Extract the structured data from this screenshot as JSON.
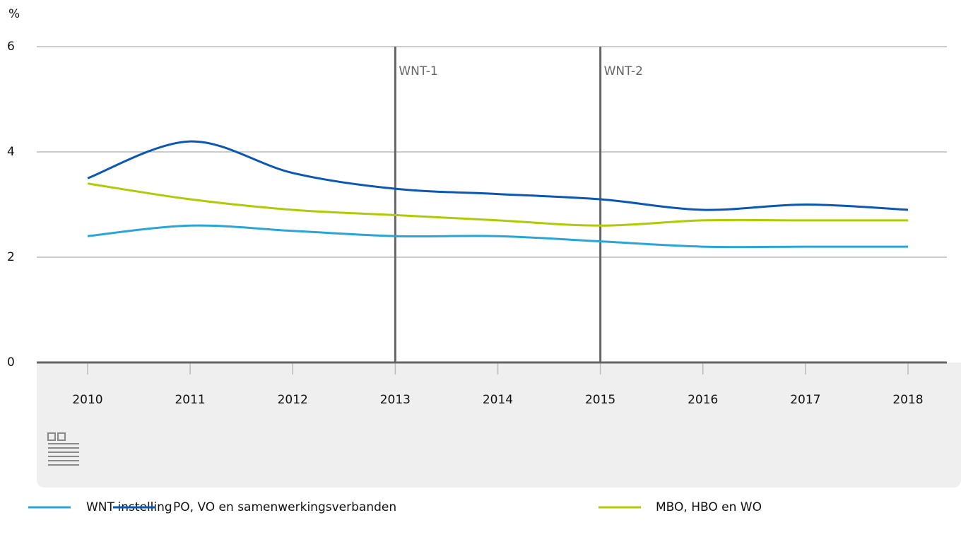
{
  "chart_data": {
    "type": "line",
    "y_label": "%",
    "categories": [
      "2010",
      "2011",
      "2012",
      "2013",
      "2014",
      "2015",
      "2016",
      "2017",
      "2018"
    ],
    "series": [
      {
        "name": "WNT-instelling",
        "color": "#2aa5d8",
        "values": [
          2.4,
          2.6,
          2.5,
          2.4,
          2.4,
          2.3,
          2.2,
          2.2,
          2.2
        ]
      },
      {
        "name": "PO, VO en samenwerkingsverbanden",
        "color": "#0a58b3",
        "values": [
          3.5,
          4.2,
          3.6,
          3.3,
          3.2,
          3.1,
          2.9,
          3.0,
          2.9
        ]
      },
      {
        "name": "MBO, HBO en WO",
        "color": "#afcb05",
        "values": [
          3.4,
          3.1,
          2.9,
          2.8,
          2.7,
          2.6,
          2.7,
          2.7,
          2.7
        ]
      }
    ],
    "annotations": [
      {
        "x": "2013",
        "label": "WNT-1"
      },
      {
        "x": "2015",
        "label": "WNT-2"
      }
    ],
    "ylim": [
      0,
      6
    ],
    "yticks": [
      0,
      2,
      4,
      6
    ],
    "grid": true,
    "legend": "bottom"
  }
}
